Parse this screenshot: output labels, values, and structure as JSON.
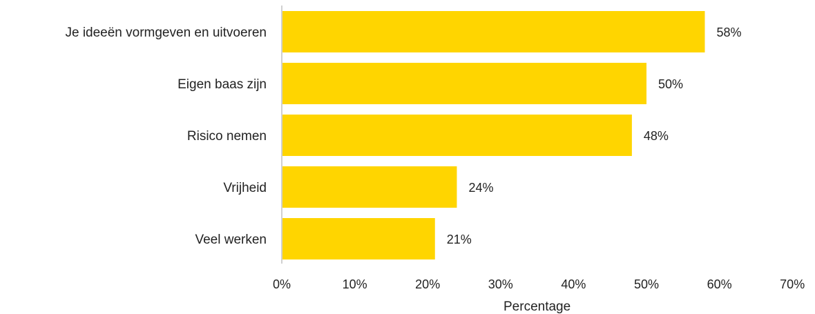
{
  "chart_data": {
    "type": "bar",
    "orientation": "horizontal",
    "categories": [
      "Je ideeën vormgeven en uitvoeren",
      "Eigen baas zijn",
      "Risico nemen",
      "Vrijheid",
      "Veel werken"
    ],
    "values": [
      58,
      50,
      48,
      24,
      21
    ],
    "value_labels": [
      "58%",
      "50%",
      "48%",
      "24%",
      "21%"
    ],
    "xlabel": "Percentage",
    "ylabel": "",
    "xlim": [
      0,
      70
    ],
    "ticks": [
      0,
      10,
      20,
      30,
      40,
      50,
      60,
      70
    ],
    "tick_labels": [
      "0%",
      "10%",
      "20%",
      "30%",
      "40%",
      "50%",
      "60%",
      "70%"
    ],
    "grid": false,
    "colors": {
      "bar": "#FFD500",
      "axis": "#d0d0d0"
    }
  }
}
